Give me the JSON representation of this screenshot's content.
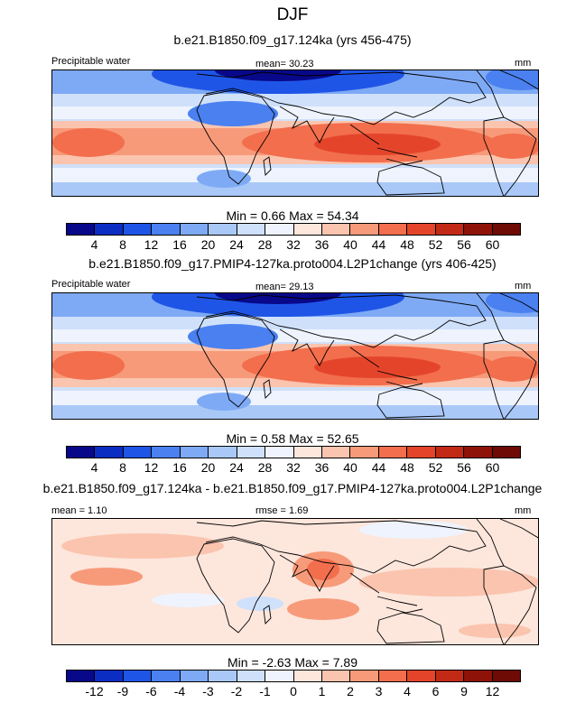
{
  "figure": {
    "title": "DJF"
  },
  "panels": [
    {
      "id": "p1",
      "title": "b.e21.B1850.f09_g17.124ka (yrs 456-475)",
      "left_label": "Precipitable water",
      "center_label": "mean=  30.23",
      "units": "mm",
      "stats": "Min =   0.66  Max =  54.34",
      "min": 0.66,
      "max": 54.34,
      "mean": 30.23,
      "colorbar": {
        "labels": [
          "4",
          "8",
          "12",
          "16",
          "20",
          "24",
          "28",
          "32",
          "36",
          "40",
          "44",
          "48",
          "52",
          "56",
          "60"
        ],
        "colors": [
          "#08088a",
          "#0c2dc2",
          "#1f55e6",
          "#4a80f0",
          "#7eaaf5",
          "#a9c8f8",
          "#cfe0fb",
          "#eef3fd",
          "#fde6dc",
          "#fac4ae",
          "#f79a7a",
          "#f26e4d",
          "#e4452a",
          "#c22a16",
          "#8f1208",
          "#6e0b04"
        ]
      }
    },
    {
      "id": "p2",
      "title": "b.e21.B1850.f09_g17.PMIP4-127ka.proto004.L2P1change (yrs 406-425)",
      "left_label": "Precipitable water",
      "center_label": "mean=  29.13",
      "units": "mm",
      "stats": "Min =   0.58  Max =  52.65",
      "min": 0.58,
      "max": 52.65,
      "mean": 29.13,
      "colorbar": {
        "labels": [
          "4",
          "8",
          "12",
          "16",
          "20",
          "24",
          "28",
          "32",
          "36",
          "40",
          "44",
          "48",
          "52",
          "56",
          "60"
        ],
        "colors": [
          "#08088a",
          "#0c2dc2",
          "#1f55e6",
          "#4a80f0",
          "#7eaaf5",
          "#a9c8f8",
          "#cfe0fb",
          "#eef3fd",
          "#fde6dc",
          "#fac4ae",
          "#f79a7a",
          "#f26e4d",
          "#e4452a",
          "#c22a16",
          "#8f1208",
          "#6e0b04"
        ]
      }
    },
    {
      "id": "p3",
      "title": "b.e21.B1850.f09_g17.124ka - b.e21.B1850.f09_g17.PMIP4-127ka.proto004.L2P1change",
      "left_label": "mean =   1.10",
      "center_label": "rmse =   1.69",
      "units": "mm",
      "stats": "Min =  -2.63  Max =   7.89",
      "min": -2.63,
      "max": 7.89,
      "mean": 1.1,
      "rmse": 1.69,
      "colorbar": {
        "labels": [
          "-12",
          "-9",
          "-6",
          "-4",
          "-3",
          "-2",
          "-1",
          "0",
          "1",
          "2",
          "3",
          "4",
          "6",
          "9",
          "12"
        ],
        "colors": [
          "#08088a",
          "#0c2dc2",
          "#1f55e6",
          "#4a80f0",
          "#7eaaf5",
          "#a9c8f8",
          "#cfe0fb",
          "#eef3fd",
          "#fde6dc",
          "#fac4ae",
          "#f79a7a",
          "#f26e4d",
          "#e4452a",
          "#c22a16",
          "#8f1208",
          "#6e0b04"
        ]
      }
    }
  ]
}
